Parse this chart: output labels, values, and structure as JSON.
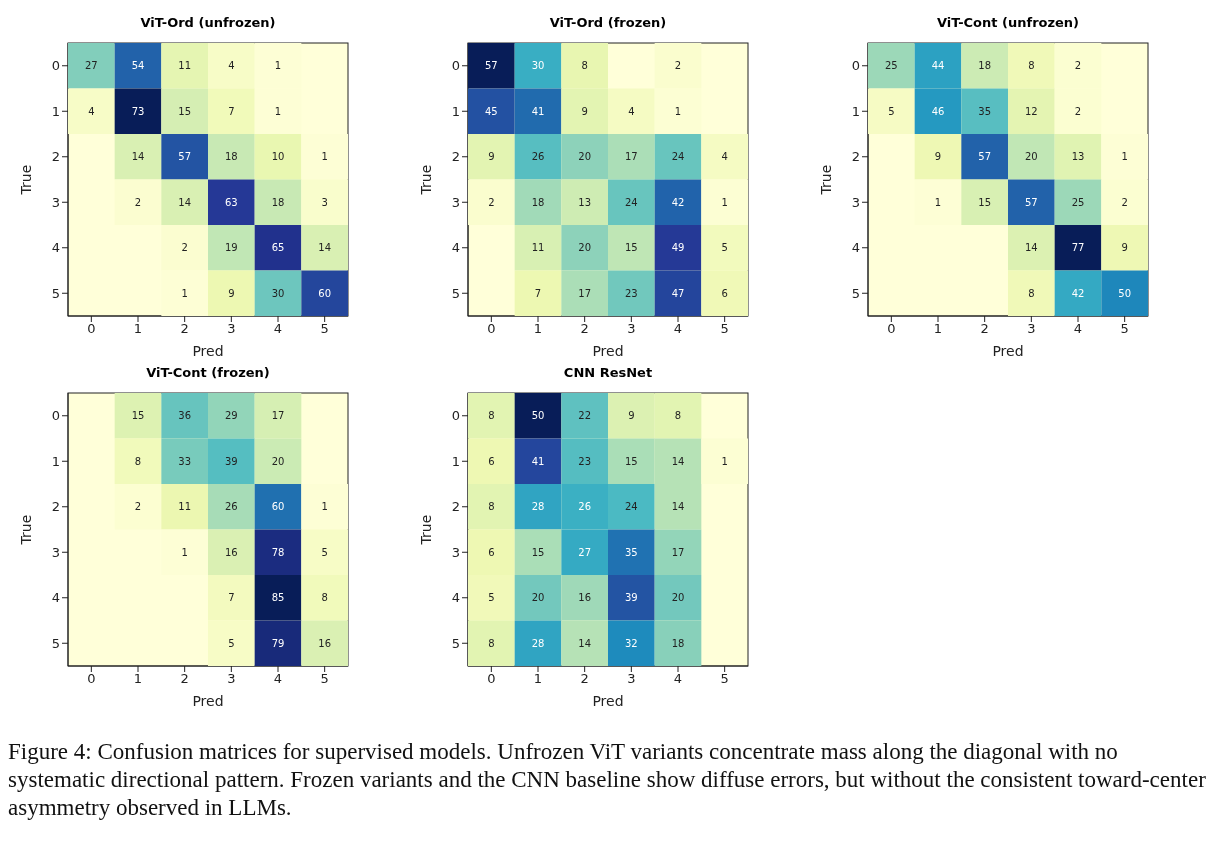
{
  "chart_data": [
    {
      "type": "heatmap",
      "title": "ViT-Ord (unfrozen)",
      "xlabel": "Pred",
      "ylabel": "True",
      "categories": [
        "0",
        "1",
        "2",
        "3",
        "4",
        "5"
      ],
      "y_categories": [
        "0",
        "1",
        "2",
        "3",
        "4",
        "5"
      ],
      "data_labels": true,
      "cells": [
        [
          27,
          54,
          11,
          4,
          1,
          null
        ],
        [
          4,
          73,
          15,
          7,
          1,
          null
        ],
        [
          null,
          14,
          57,
          18,
          10,
          1
        ],
        [
          null,
          2,
          14,
          63,
          18,
          3
        ],
        [
          null,
          null,
          2,
          19,
          65,
          14
        ],
        [
          null,
          null,
          1,
          9,
          30,
          60
        ]
      ]
    },
    {
      "type": "heatmap",
      "title": "ViT-Ord (frozen)",
      "xlabel": "Pred",
      "ylabel": "True",
      "categories": [
        "0",
        "1",
        "2",
        "3",
        "4",
        "5"
      ],
      "y_categories": [
        "0",
        "1",
        "2",
        "3",
        "4",
        "5"
      ],
      "data_labels": true,
      "cells": [
        [
          57,
          30,
          8,
          null,
          2,
          null
        ],
        [
          45,
          41,
          9,
          4,
          1,
          null
        ],
        [
          9,
          26,
          20,
          17,
          24,
          4
        ],
        [
          2,
          18,
          13,
          24,
          42,
          1
        ],
        [
          null,
          11,
          20,
          15,
          49,
          5
        ],
        [
          null,
          7,
          17,
          23,
          47,
          6
        ]
      ]
    },
    {
      "type": "heatmap",
      "title": "ViT-Cont (unfrozen)",
      "xlabel": "Pred",
      "ylabel": "True",
      "categories": [
        "0",
        "1",
        "2",
        "3",
        "4",
        "5"
      ],
      "y_categories": [
        "0",
        "1",
        "2",
        "3",
        "4",
        "5"
      ],
      "data_labels": true,
      "cells": [
        [
          25,
          44,
          18,
          8,
          2,
          null
        ],
        [
          5,
          46,
          35,
          12,
          2,
          null
        ],
        [
          null,
          9,
          57,
          20,
          13,
          1
        ],
        [
          null,
          1,
          15,
          57,
          25,
          2
        ],
        [
          null,
          null,
          null,
          14,
          77,
          9
        ],
        [
          null,
          null,
          null,
          8,
          42,
          50
        ]
      ]
    },
    {
      "type": "heatmap",
      "title": "ViT-Cont (frozen)",
      "xlabel": "Pred",
      "ylabel": "True",
      "categories": [
        "0",
        "1",
        "2",
        "3",
        "4",
        "5"
      ],
      "y_categories": [
        "0",
        "1",
        "2",
        "3",
        "4",
        "5"
      ],
      "data_labels": true,
      "cells": [
        [
          null,
          15,
          36,
          29,
          17,
          null
        ],
        [
          null,
          8,
          33,
          39,
          20,
          null
        ],
        [
          null,
          2,
          11,
          26,
          60,
          1
        ],
        [
          null,
          null,
          1,
          16,
          78,
          5
        ],
        [
          null,
          null,
          null,
          7,
          85,
          8
        ],
        [
          null,
          null,
          null,
          5,
          79,
          16
        ]
      ]
    },
    {
      "type": "heatmap",
      "title": "CNN ResNet",
      "xlabel": "Pred",
      "ylabel": "True",
      "categories": [
        "0",
        "1",
        "2",
        "3",
        "4",
        "5"
      ],
      "y_categories": [
        "0",
        "1",
        "2",
        "3",
        "4",
        "5"
      ],
      "data_labels": true,
      "cells": [
        [
          8,
          50,
          22,
          9,
          8,
          null
        ],
        [
          6,
          41,
          23,
          15,
          14,
          1
        ],
        [
          8,
          28,
          26,
          24,
          14,
          null
        ],
        [
          6,
          15,
          27,
          35,
          17,
          null
        ],
        [
          5,
          20,
          16,
          39,
          20,
          null
        ],
        [
          8,
          28,
          14,
          32,
          18,
          null
        ]
      ],
      "annotations": [
        "Figure 4: Confusion matrices for supervised models. Unfrozen ViT variants concentrate mass along the diagonal with no systematic directional pattern. Frozen variants and the CNN baseline show diffuse errors, but without the consistent toward-center asymmetry observed in LLMs."
      ]
    }
  ]
}
